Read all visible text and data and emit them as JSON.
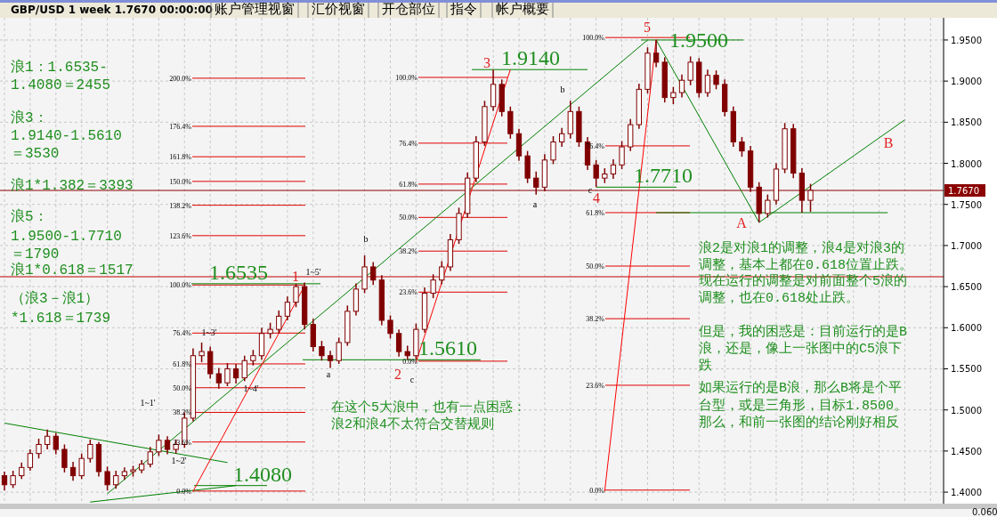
{
  "chart_data": {
    "type": "candlestick",
    "title": "GBP/USD 1 week 1.7670 00:00:00",
    "color": "#800000",
    "grid": true,
    "ylim": [
      1.386,
      1.977
    ],
    "yticks": [
      {
        "value": 1.4,
        "label": "1.4000"
      },
      {
        "value": 1.45,
        "label": "1.4500"
      },
      {
        "value": 1.5,
        "label": "1.5000"
      },
      {
        "value": 1.55,
        "label": "1.5500"
      },
      {
        "value": 1.6,
        "label": "1.6000"
      },
      {
        "value": 1.65,
        "label": "1.6500"
      },
      {
        "value": 1.7,
        "label": "1.7000"
      },
      {
        "value": 1.75,
        "label": "1.7500"
      },
      {
        "value": 1.8,
        "label": "1.8000"
      },
      {
        "value": 1.85,
        "label": "1.8500"
      },
      {
        "value": 1.9,
        "label": "1.9000"
      },
      {
        "value": 1.95,
        "label": "1.9500"
      }
    ],
    "categories": [
      null,
      null,
      null,
      null,
      null,
      null,
      null,
      null,
      null,
      null,
      null,
      null,
      null,
      null,
      null,
      null,
      null,
      null,
      null,
      null,
      null,
      null,
      null,
      null,
      null,
      null,
      null,
      null,
      null,
      null,
      null,
      null,
      null,
      null,
      null,
      null,
      null,
      null,
      null,
      null,
      null,
      null,
      null,
      null,
      null,
      null,
      null,
      null,
      null,
      null,
      null,
      null,
      null,
      null,
      null,
      null,
      null,
      null,
      null,
      null,
      null,
      null,
      null,
      null,
      null,
      null,
      null,
      null,
      null,
      null,
      null,
      null,
      null,
      null,
      null,
      null,
      null,
      null,
      null,
      null,
      null,
      null,
      null,
      null,
      null,
      null,
      null,
      null,
      null,
      null,
      null,
      null,
      null,
      null,
      null,
      null,
      null,
      null,
      null,
      null,
      null,
      null,
      null,
      null,
      null,
      null,
      null,
      null,
      null,
      null
    ],
    "ohlc": [
      [
        1.42,
        1.425,
        1.402,
        1.409
      ],
      [
        1.409,
        1.426,
        1.405,
        1.42
      ],
      [
        1.42,
        1.436,
        1.416,
        1.43
      ],
      [
        1.43,
        1.452,
        1.426,
        1.447
      ],
      [
        1.447,
        1.465,
        1.441,
        1.458
      ],
      [
        1.458,
        1.476,
        1.452,
        1.468
      ],
      [
        1.468,
        1.472,
        1.446,
        1.452
      ],
      [
        1.452,
        1.458,
        1.424,
        1.43
      ],
      [
        1.43,
        1.437,
        1.414,
        1.42
      ],
      [
        1.42,
        1.447,
        1.416,
        1.441
      ],
      [
        1.441,
        1.464,
        1.436,
        1.458
      ],
      [
        1.458,
        1.461,
        1.419,
        1.425
      ],
      [
        1.425,
        1.431,
        1.402,
        1.409
      ],
      [
        1.409,
        1.426,
        1.404,
        1.42
      ],
      [
        1.42,
        1.43,
        1.415,
        1.425
      ],
      [
        1.425,
        1.432,
        1.419,
        1.427
      ],
      [
        1.427,
        1.439,
        1.423,
        1.434
      ],
      [
        1.434,
        1.455,
        1.43,
        1.449
      ],
      [
        1.449,
        1.47,
        1.444,
        1.463
      ],
      [
        1.463,
        1.468,
        1.446,
        1.452
      ],
      [
        1.452,
        1.464,
        1.447,
        1.458
      ],
      [
        1.458,
        1.497,
        1.454,
        1.49
      ],
      [
        1.49,
        1.575,
        1.486,
        1.566
      ],
      [
        1.566,
        1.582,
        1.558,
        1.571
      ],
      [
        1.571,
        1.577,
        1.538,
        1.544
      ],
      [
        1.544,
        1.551,
        1.526,
        1.533
      ],
      [
        1.533,
        1.557,
        1.529,
        1.55
      ],
      [
        1.55,
        1.556,
        1.532,
        1.539
      ],
      [
        1.539,
        1.566,
        1.535,
        1.56
      ],
      [
        1.56,
        1.573,
        1.554,
        1.566
      ],
      [
        1.566,
        1.6,
        1.561,
        1.593
      ],
      [
        1.593,
        1.606,
        1.587,
        1.598
      ],
      [
        1.598,
        1.621,
        1.593,
        1.614
      ],
      [
        1.614,
        1.638,
        1.609,
        1.631
      ],
      [
        1.631,
        1.6535,
        1.625,
        1.65
      ],
      [
        1.65,
        1.655,
        1.598,
        1.604
      ],
      [
        1.604,
        1.611,
        1.571,
        1.577
      ],
      [
        1.577,
        1.584,
        1.56,
        1.566
      ],
      [
        1.566,
        1.572,
        1.551,
        1.56
      ],
      [
        1.56,
        1.588,
        1.556,
        1.582
      ],
      [
        1.582,
        1.627,
        1.578,
        1.62
      ],
      [
        1.62,
        1.654,
        1.615,
        1.647
      ],
      [
        1.647,
        1.688,
        1.642,
        1.674
      ],
      [
        1.674,
        1.68,
        1.652,
        1.658
      ],
      [
        1.658,
        1.664,
        1.603,
        1.609
      ],
      [
        1.609,
        1.615,
        1.587,
        1.593
      ],
      [
        1.593,
        1.598,
        1.565,
        1.571
      ],
      [
        1.571,
        1.578,
        1.561,
        1.566
      ],
      [
        1.566,
        1.605,
        1.562,
        1.598
      ],
      [
        1.598,
        1.649,
        1.594,
        1.642
      ],
      [
        1.642,
        1.665,
        1.636,
        1.658
      ],
      [
        1.658,
        1.681,
        1.653,
        1.674
      ],
      [
        1.674,
        1.714,
        1.669,
        1.707
      ],
      [
        1.707,
        1.746,
        1.702,
        1.739
      ],
      [
        1.739,
        1.789,
        1.734,
        1.782
      ],
      [
        1.782,
        1.833,
        1.777,
        1.826
      ],
      [
        1.826,
        1.876,
        1.821,
        1.869
      ],
      [
        1.869,
        1.914,
        1.864,
        1.896
      ],
      [
        1.896,
        1.902,
        1.857,
        1.863
      ],
      [
        1.863,
        1.869,
        1.83,
        1.836
      ],
      [
        1.836,
        1.842,
        1.803,
        1.809
      ],
      [
        1.809,
        1.815,
        1.776,
        1.782
      ],
      [
        1.782,
        1.79,
        1.762,
        1.771
      ],
      [
        1.771,
        1.811,
        1.766,
        1.804
      ],
      [
        1.804,
        1.833,
        1.799,
        1.826
      ],
      [
        1.826,
        1.843,
        1.82,
        1.836
      ],
      [
        1.836,
        1.876,
        1.83,
        1.863
      ],
      [
        1.863,
        1.869,
        1.82,
        1.826
      ],
      [
        1.826,
        1.832,
        1.792,
        1.798
      ],
      [
        1.798,
        1.804,
        1.771,
        1.782
      ],
      [
        1.782,
        1.794,
        1.776,
        1.787
      ],
      [
        1.787,
        1.805,
        1.781,
        1.798
      ],
      [
        1.798,
        1.827,
        1.793,
        1.82
      ],
      [
        1.82,
        1.854,
        1.815,
        1.847
      ],
      [
        1.847,
        1.897,
        1.842,
        1.89
      ],
      [
        1.89,
        1.941,
        1.885,
        1.934
      ],
      [
        1.934,
        1.95,
        1.917,
        1.923
      ],
      [
        1.923,
        1.929,
        1.874,
        1.88
      ],
      [
        1.88,
        1.893,
        1.872,
        1.886
      ],
      [
        1.886,
        1.908,
        1.88,
        1.901
      ],
      [
        1.901,
        1.93,
        1.895,
        1.923
      ],
      [
        1.923,
        1.928,
        1.88,
        1.886
      ],
      [
        1.886,
        1.914,
        1.881,
        1.907
      ],
      [
        1.907,
        1.913,
        1.89,
        1.896
      ],
      [
        1.896,
        1.902,
        1.857,
        1.863
      ],
      [
        1.863,
        1.869,
        1.82,
        1.826
      ],
      [
        1.826,
        1.832,
        1.808,
        1.815
      ],
      [
        1.815,
        1.821,
        1.765,
        1.771
      ],
      [
        1.771,
        1.777,
        1.728,
        1.739
      ],
      [
        1.739,
        1.762,
        1.734,
        1.755
      ],
      [
        1.755,
        1.8,
        1.75,
        1.793
      ],
      [
        1.793,
        1.849,
        1.788,
        1.842
      ],
      [
        1.842,
        1.848,
        1.782,
        1.788
      ],
      [
        1.788,
        1.794,
        1.74,
        1.755
      ],
      [
        1.755,
        1.775,
        1.741,
        1.767
      ],
      null,
      null,
      null,
      null,
      null,
      null,
      null,
      null,
      null,
      null,
      null,
      null,
      null,
      null,
      null
    ],
    "series": [
      {
        "type": "line",
        "color": "#008000",
        "values": [
          null,
          null,
          null,
          null,
          null,
          null,
          null,
          null,
          null,
          null,
          null,
          null,
          1.398,
          null,
          null,
          null,
          null,
          null,
          null,
          null,
          null,
          null,
          null,
          null,
          null,
          null,
          null,
          null,
          null,
          null,
          null,
          null,
          null,
          null,
          null,
          null,
          null,
          null,
          null,
          null,
          null,
          null,
          null,
          null,
          null,
          null,
          null,
          null,
          null,
          null,
          null,
          null,
          null,
          null,
          null,
          null,
          null,
          null,
          null,
          null,
          null,
          null,
          null,
          null,
          null,
          null,
          null,
          null,
          null,
          null,
          null,
          null,
          null,
          null,
          null,
          1.95,
          null,
          null,
          null,
          null,
          null,
          null,
          null,
          null,
          null,
          null,
          null,
          null,
          null,
          null,
          null,
          null,
          null,
          null,
          null,
          null,
          null,
          null,
          null,
          null,
          null,
          null,
          null,
          null,
          null,
          null,
          null,
          null,
          null,
          null
        ]
      },
      {
        "type": "line",
        "color": "#008000",
        "values": [
          null,
          null,
          null,
          null,
          null,
          null,
          null,
          null,
          null,
          null,
          1.388,
          null,
          null,
          null,
          null,
          null,
          null,
          null,
          null,
          null,
          null,
          null,
          null,
          null,
          null,
          null,
          null,
          1.408,
          null,
          null,
          null,
          null,
          null,
          null,
          null,
          null,
          null,
          null,
          null,
          null,
          null,
          null,
          null,
          null,
          null,
          null,
          null,
          null,
          null,
          null,
          null,
          null,
          null,
          null,
          null,
          null,
          null,
          null,
          null,
          null,
          null,
          null,
          null,
          null,
          null,
          null,
          null,
          null,
          null,
          null,
          null,
          null,
          null,
          null,
          null,
          null,
          null,
          null,
          null,
          null,
          null,
          null,
          null,
          null,
          null,
          null,
          null,
          null,
          null,
          null,
          null,
          null,
          null,
          null,
          null,
          null,
          null,
          null,
          null,
          null,
          null,
          null,
          null,
          null,
          null,
          null,
          null,
          null,
          null,
          null
        ]
      },
      {
        "type": "line",
        "color": "#008000",
        "values": [
          1.484,
          null,
          null,
          null,
          null,
          null,
          null,
          null,
          null,
          null,
          null,
          null,
          null,
          null,
          null,
          null,
          null,
          null,
          null,
          null,
          null,
          null,
          null,
          null,
          null,
          null,
          1.436,
          null,
          null,
          null,
          null,
          null,
          null,
          null,
          null,
          null,
          null,
          null,
          null,
          null,
          null,
          null,
          null,
          null,
          null,
          null,
          null,
          null,
          null,
          null,
          null,
          null,
          null,
          null,
          null,
          null,
          null,
          null,
          null,
          null,
          null,
          null,
          null,
          null,
          null,
          null,
          null,
          null,
          null,
          null,
          null,
          null,
          null,
          null,
          null,
          null,
          null,
          null,
          null,
          null,
          null,
          null,
          null,
          null,
          null,
          null,
          null,
          null,
          null,
          null,
          null,
          null,
          null,
          null,
          null,
          null,
          null,
          null,
          null,
          null,
          null,
          null,
          null,
          null,
          null,
          null,
          null,
          null,
          null,
          null
        ]
      },
      {
        "type": "line",
        "color": "#008000",
        "values": [
          null,
          null,
          null,
          null,
          null,
          null,
          null,
          null,
          null,
          null,
          null,
          null,
          null,
          null,
          null,
          null,
          null,
          null,
          null,
          null,
          null,
          null,
          null,
          null,
          null,
          null,
          null,
          null,
          null,
          null,
          null,
          null,
          null,
          null,
          null,
          null,
          null,
          null,
          null,
          null,
          null,
          null,
          null,
          null,
          null,
          null,
          null,
          null,
          null,
          null,
          null,
          null,
          null,
          null,
          null,
          null,
          null,
          null,
          null,
          null,
          null,
          null,
          null,
          null,
          null,
          null,
          null,
          null,
          null,
          null,
          null,
          null,
          null,
          null,
          null,
          null,
          1.95,
          null,
          null,
          null,
          null,
          null,
          null,
          null,
          null,
          null,
          null,
          null,
          1.728,
          null,
          null,
          null,
          null,
          null,
          null,
          null,
          null,
          null,
          null,
          null,
          null,
          null,
          null,
          null,
          null,
          null,
          null,
          null,
          null,
          null
        ]
      },
      {
        "type": "line",
        "color": "#008000",
        "values": [
          null,
          null,
          null,
          null,
          null,
          null,
          null,
          null,
          null,
          null,
          null,
          null,
          null,
          null,
          null,
          null,
          null,
          null,
          null,
          null,
          null,
          null,
          null,
          null,
          null,
          null,
          null,
          null,
          null,
          null,
          null,
          null,
          null,
          null,
          null,
          null,
          null,
          null,
          null,
          null,
          null,
          null,
          null,
          null,
          null,
          null,
          null,
          null,
          null,
          null,
          null,
          null,
          null,
          null,
          null,
          null,
          null,
          null,
          null,
          null,
          null,
          null,
          null,
          null,
          null,
          null,
          null,
          null,
          null,
          null,
          null,
          null,
          null,
          null,
          null,
          null,
          null,
          null,
          null,
          null,
          null,
          null,
          null,
          null,
          null,
          null,
          null,
          null,
          1.728,
          null,
          null,
          null,
          null,
          null,
          null,
          null,
          null,
          null,
          null,
          null,
          null,
          null,
          null,
          null,
          null,
          1.853,
          null,
          null,
          null,
          null
        ]
      },
      {
        "type": "line",
        "color": "#008000",
        "values": [
          null,
          null,
          null,
          null,
          null,
          null,
          null,
          null,
          null,
          null,
          null,
          null,
          null,
          null,
          null,
          null,
          null,
          null,
          null,
          null,
          null,
          null,
          null,
          null,
          null,
          null,
          null,
          null,
          null,
          null,
          null,
          null,
          null,
          null,
          null,
          null,
          null,
          null,
          null,
          null,
          null,
          null,
          null,
          null,
          null,
          null,
          null,
          null,
          null,
          null,
          null,
          null,
          null,
          null,
          null,
          null,
          null,
          null,
          null,
          null,
          null,
          null,
          null,
          null,
          null,
          null,
          null,
          null,
          null,
          null,
          null,
          null,
          null,
          null,
          null,
          null,
          1.74,
          null,
          null,
          null,
          null,
          null,
          null,
          null,
          null,
          null,
          null,
          null,
          null,
          null,
          null,
          null,
          null,
          null,
          null,
          null,
          null,
          null,
          null,
          null,
          null,
          null,
          null,
          1.74,
          null,
          null,
          null,
          null,
          null,
          null
        ]
      },
      {
        "type": "line",
        "color": "#ff0000",
        "values": [
          null,
          null,
          null,
          null,
          null,
          null,
          null,
          null,
          null,
          null,
          null,
          null,
          null,
          null,
          null,
          null,
          null,
          null,
          null,
          null,
          null,
          null,
          null,
          null,
          null,
          null,
          null,
          null,
          null,
          null,
          null,
          null,
          null,
          null,
          null,
          null,
          null,
          null,
          null,
          null,
          null,
          null,
          null,
          null,
          null,
          null,
          null,
          null,
          1.558,
          null,
          null,
          null,
          null,
          null,
          null,
          null,
          null,
          null,
          null,
          1.914,
          null,
          null,
          null,
          null,
          null,
          null,
          null,
          null,
          null,
          null,
          null,
          null,
          null,
          null,
          null,
          null,
          null,
          null,
          null,
          null,
          null,
          null,
          null,
          null,
          null,
          null,
          null,
          null,
          null,
          null,
          null,
          null,
          null,
          null,
          null,
          null,
          null,
          null,
          null,
          null,
          null,
          null,
          null,
          null,
          null,
          null,
          null,
          null,
          null,
          null
        ]
      },
      {
        "type": "line",
        "color": "#ff0000",
        "values": [
          null,
          null,
          null,
          null,
          null,
          null,
          null,
          null,
          null,
          null,
          null,
          null,
          null,
          null,
          null,
          null,
          null,
          null,
          null,
          null,
          null,
          null,
          1.401,
          null,
          null,
          null,
          null,
          null,
          null,
          null,
          null,
          null,
          null,
          null,
          null,
          1.651,
          null,
          null,
          null,
          null,
          null,
          null,
          null,
          null,
          null,
          null,
          null,
          null,
          null,
          null,
          null,
          null,
          null,
          null,
          null,
          null,
          null,
          null,
          null,
          null,
          null,
          null,
          null,
          null,
          null,
          null,
          null,
          null,
          null,
          null,
          null,
          null,
          null,
          null,
          null,
          null,
          null,
          null,
          null,
          null,
          null,
          null,
          null,
          null,
          null,
          null,
          null,
          null,
          null,
          null,
          null,
          null,
          null,
          null,
          null,
          null,
          null,
          null,
          null,
          null,
          null,
          null,
          null,
          null,
          null,
          null,
          null,
          null,
          null,
          null
        ]
      },
      {
        "type": "line",
        "color": "#ff0000",
        "values": [
          null,
          null,
          null,
          null,
          null,
          null,
          null,
          null,
          null,
          null,
          null,
          null,
          null,
          null,
          null,
          null,
          null,
          null,
          null,
          null,
          null,
          null,
          null,
          null,
          null,
          null,
          null,
          null,
          null,
          null,
          null,
          null,
          null,
          null,
          null,
          null,
          null,
          null,
          null,
          null,
          null,
          null,
          null,
          null,
          null,
          null,
          null,
          null,
          null,
          null,
          null,
          null,
          null,
          null,
          null,
          null,
          null,
          null,
          null,
          null,
          null,
          null,
          null,
          null,
          null,
          null,
          null,
          null,
          null,
          null,
          1.401,
          null,
          null,
          null,
          null,
          null,
          1.951,
          null,
          null,
          null,
          null,
          null,
          null,
          null,
          null,
          null,
          null,
          null,
          null,
          null,
          null,
          null,
          null,
          null,
          null,
          null,
          null,
          null,
          null,
          null,
          null,
          null,
          null,
          null,
          null,
          null,
          null,
          null,
          null,
          null
        ]
      }
    ],
    "ref_lines": [
      {
        "axis": "y",
        "value": 1.767,
        "label": "1.7670",
        "color": "#8b0000"
      },
      {
        "axis": "y",
        "value": 1.662,
        "color": "#c00000"
      },
      {
        "axis": "y",
        "value": 1.9035,
        "color": "#e00000"
      },
      {
        "axis": "y",
        "value": 1.845,
        "color": "#e00000"
      },
      {
        "axis": "y",
        "value": 1.808,
        "color": "#e00000"
      },
      {
        "axis": "y",
        "value": 1.778,
        "color": "#e00000"
      },
      {
        "axis": "y",
        "value": 1.749,
        "color": "#e00000"
      },
      {
        "axis": "y",
        "value": 1.712,
        "color": "#e00000"
      },
      {
        "axis": "y",
        "value": 1.652,
        "color": "#e00000"
      },
      {
        "axis": "y",
        "value": 1.5935,
        "color": "#e00000"
      },
      {
        "axis": "y",
        "value": 1.556,
        "color": "#e00000"
      },
      {
        "axis": "y",
        "value": 1.527,
        "color": "#e00000"
      },
      {
        "axis": "y",
        "value": 1.497,
        "color": "#e00000"
      },
      {
        "axis": "y",
        "value": 1.461,
        "color": "#e00000"
      },
      {
        "axis": "y",
        "value": 1.4013,
        "color": "#e00000"
      },
      {
        "axis": "y",
        "value": 1.9045,
        "color": "#e00000"
      },
      {
        "axis": "y",
        "value": 1.8245,
        "color": "#e00000"
      },
      {
        "axis": "y",
        "value": 1.7747,
        "color": "#e00000"
      },
      {
        "axis": "y",
        "value": 1.7342,
        "color": "#e00000"
      },
      {
        "axis": "y",
        "value": 1.6932,
        "color": "#e00000"
      },
      {
        "axis": "y",
        "value": 1.6433,
        "color": "#e00000"
      },
      {
        "axis": "y",
        "value": 1.5593,
        "color": "#e00000"
      },
      {
        "axis": "y",
        "value": 1.953,
        "color": "#e00000"
      },
      {
        "axis": "y",
        "value": 1.8212,
        "color": "#e00000"
      },
      {
        "axis": "y",
        "value": 1.74,
        "color": "#e00000"
      },
      {
        "axis": "y",
        "value": 1.675,
        "color": "#e00000"
      },
      {
        "axis": "y",
        "value": 1.611,
        "color": "#e00000"
      },
      {
        "axis": "y",
        "value": 1.53,
        "color": "#e00000"
      },
      {
        "axis": "y",
        "value": 1.4025,
        "color": "#e00000"
      },
      {
        "axis": "y",
        "value": 1.914,
        "label": "1.9140",
        "color": "#008000"
      },
      {
        "axis": "y",
        "value": 1.95,
        "label": "1.9500",
        "color": "#008000"
      },
      {
        "axis": "y",
        "value": 1.771,
        "label": "1.7710",
        "color": "#008000"
      },
      {
        "axis": "y",
        "value": 1.6535,
        "label": "1.6535",
        "color": "#008000"
      },
      {
        "axis": "y",
        "value": 1.561,
        "label": "1.5610",
        "color": "#008000"
      },
      {
        "axis": "y",
        "value": 1.408,
        "label": "1.4080",
        "color": "#008000"
      }
    ],
    "annotations": [
      "账户管理视窗",
      "汇价视窗",
      "开仓部位",
      "指令",
      "帐户概要",
      "浪1：1.6535-",
      "1.4080＝2455",
      "浪3：",
      "1.9140-1.5610",
      "＝3530",
      "浪1*1.382＝3393",
      "浪5：",
      "1.9500-1.7710",
      "＝1790",
      "浪1*0.618＝1517",
      "（浪3－浪1）",
      "*1.618＝1739",
      "在这个5大浪中，也有一点困惑：",
      "浪2和浪4不太符合交替规则",
      "浪2是对浪1的调整，浪4是对浪3的",
      "调整，基本上都在0.618位置止跌。",
      "现在运行的调整是对前面整个5浪的",
      "调整，也在0.618处止跌。",
      "但是，我的困惑是：目前运行的是B",
      "浪，还是，像上一张图中的C5浪下",
      "跌",
      "如果运行的是B浪，那么B将是个平",
      "台型，或是三角形，目标1.8500。",
      "那么，和前一张图的结论刚好相反",
      "0.060",
      "5",
      "3",
      "1",
      "2",
      "4",
      "A",
      "B",
      "b",
      "a",
      "c",
      "b",
      "a",
      "c",
      "1~5'",
      "1~3'",
      "1~4'",
      "1~1'",
      "1~2'",
      "200.0%",
      "176.4%",
      "161.8%",
      "150.0%",
      "138.2%",
      "123.6%",
      "100.0%",
      "76.4%",
      "61.8%",
      "50.0%",
      "38.2%",
      "23.6%",
      "0.0%",
      "100.0%",
      "76.4%",
      "61.8%",
      "50.0%",
      "38.2%",
      "23.6%",
      "0.0%",
      "100.0%",
      "76.4%",
      "61.8%",
      "50.0%",
      "38.2%",
      "23.6%",
      "0.0%"
    ]
  }
}
